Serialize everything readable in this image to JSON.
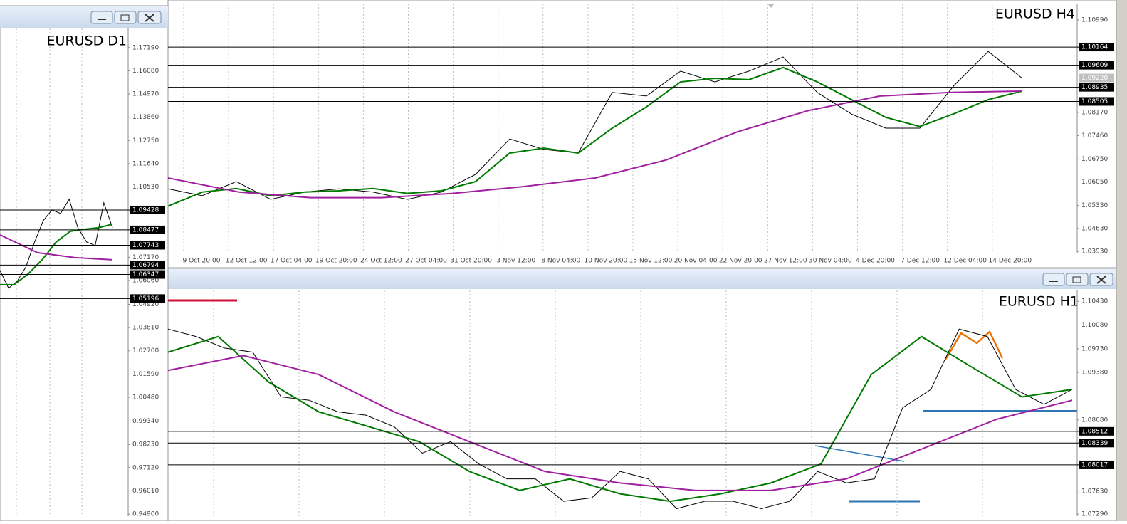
{
  "chart_data": [
    {
      "type": "line",
      "title": "EURUSD D1",
      "ylim": [
        0.948,
        1.181
      ],
      "yticks": [
        {
          "value": 1.1719,
          "label": "1.17190"
        },
        {
          "value": 1.1608,
          "label": "1.16080"
        },
        {
          "value": 1.1497,
          "label": "1.14970"
        },
        {
          "value": 1.1386,
          "label": "1.13860"
        },
        {
          "value": 1.1275,
          "label": "1.12750"
        },
        {
          "value": 1.1164,
          "label": "1.11640"
        },
        {
          "value": 1.1053,
          "label": "1.10530"
        },
        {
          "value": 1.0717,
          "label": "1.07170"
        },
        {
          "value": 1.0606,
          "label": "1.06060"
        },
        {
          "value": 1.0492,
          "label": "1.04920"
        },
        {
          "value": 1.0381,
          "label": "1.03810"
        },
        {
          "value": 1.027,
          "label": "1.02700"
        },
        {
          "value": 1.0159,
          "label": "1.01590"
        },
        {
          "value": 1.0048,
          "label": "1.00480"
        },
        {
          "value": 0.9934,
          "label": "0.99340"
        },
        {
          "value": 0.9823,
          "label": "0.98230"
        },
        {
          "value": 0.9712,
          "label": "0.97120"
        },
        {
          "value": 0.9601,
          "label": "0.96010"
        },
        {
          "value": 0.949,
          "label": "0.94900"
        }
      ],
      "levels": [
        1.09428,
        1.08477,
        1.07743,
        1.06794,
        1.06347,
        1.05196
      ],
      "series": [
        {
          "color": "#000000",
          "values": [
            1.0654,
            1.0569,
            1.0603,
            1.0671,
            1.079,
            1.0892,
            1.0943,
            1.0926,
            1.0994,
            1.0858,
            1.079,
            1.0773,
            1.0977,
            1.0858
          ]
        },
        {
          "color": "#007a00",
          "values": [
            1.0586,
            1.0586,
            1.0637,
            1.0705,
            1.079,
            1.0841,
            1.0851,
            1.0858,
            1.0875
          ]
        },
        {
          "color": "#a020a0",
          "values": [
            1.0824,
            1.0739,
            1.0715,
            1.0705
          ]
        }
      ]
    },
    {
      "type": "line",
      "title": "EURUSD H4",
      "ylim": [
        1.0389,
        1.1149
      ],
      "yticks": [
        {
          "value": 1.1099,
          "label": "1.10990"
        },
        {
          "value": 1.0817,
          "label": "1.08170"
        },
        {
          "value": 1.0746,
          "label": "1.07460"
        },
        {
          "value": 1.0675,
          "label": "1.06750"
        },
        {
          "value": 1.0605,
          "label": "1.06050"
        },
        {
          "value": 1.0533,
          "label": "1.05330"
        },
        {
          "value": 1.0463,
          "label": "1.04630"
        },
        {
          "value": 1.0393,
          "label": "1.03930"
        }
      ],
      "levels": [
        1.10164,
        1.09609,
        1.08935,
        1.08505
      ],
      "current": {
        "value": 1.0922,
        "label": "1.09220"
      },
      "xtick_labels": [
        "9 Oct 20:00",
        "12 Oct 12:00",
        "17 Oct 04:00",
        "19 Oct 20:00",
        "24 Oct 12:00",
        "27 Oct 04:00",
        "31 Oct 20:00",
        "3 Nov 12:00",
        "8 Nov 04:00",
        "10 Nov 20:00",
        "15 Nov 12:00",
        "20 Nov 04:00",
        "22 Nov 20:00",
        "27 Nov 12:00",
        "30 Nov 04:00",
        "4 Dec 20:00",
        "7 Dec 12:00",
        "12 Dec 04:00",
        "14 Dec 20:00"
      ],
      "series": [
        {
          "color": "#000000",
          "values": [
            1.0584,
            1.0563,
            1.0606,
            1.0552,
            1.0574,
            1.0584,
            1.0574,
            1.0552,
            1.0574,
            1.0628,
            1.0736,
            1.0704,
            1.0693,
            1.0878,
            1.0867,
            1.0943,
            1.091,
            1.0943,
            1.0986,
            1.0878,
            1.0812,
            1.0769,
            1.0769,
            1.0899,
            1.1003,
            1.0921
          ]
        },
        {
          "color": "#007a00",
          "values": [
            1.0531,
            1.0574,
            1.0585,
            1.0563,
            1.0574,
            1.0578,
            1.0585,
            1.057,
            1.0578,
            1.0606,
            1.0693,
            1.0708,
            1.0693,
            1.0769,
            1.0834,
            1.091,
            1.0921,
            1.0917,
            1.0954,
            1.091,
            1.0856,
            1.0802,
            1.0774,
            1.0813,
            1.0856,
            1.0882
          ]
        },
        {
          "color": "#a020a0",
          "values": [
            1.0617,
            1.0574,
            1.0557,
            1.0557,
            1.057,
            1.0591,
            1.0617,
            1.0672,
            1.0758,
            1.0823,
            1.0867,
            1.0878,
            1.0882
          ]
        }
      ]
    },
    {
      "type": "line",
      "title": "EURUSD H1",
      "ylim": [
        1.0726,
        1.1059
      ],
      "yticks": [
        {
          "value": 1.1043,
          "label": "1.10430"
        },
        {
          "value": 1.1008,
          "label": "1.10080"
        },
        {
          "value": 1.0973,
          "label": "1.09730"
        },
        {
          "value": 1.0938,
          "label": "1.09380"
        },
        {
          "value": 1.0868,
          "label": "1.08680"
        },
        {
          "value": 1.0763,
          "label": "1.07630"
        },
        {
          "value": 1.0729,
          "label": "1.07290"
        }
      ],
      "levels": [
        1.08512,
        1.08339,
        1.08017
      ],
      "series": [
        {
          "color": "#000000",
          "values": [
            1.1002,
            1.0991,
            1.0974,
            1.0968,
            1.0902,
            1.0897,
            1.088,
            1.0875,
            1.0858,
            1.0819,
            1.0836,
            1.0803,
            1.0781,
            1.0781,
            1.0748,
            1.0753,
            1.0792,
            1.0781,
            1.0737,
            1.0748,
            1.0748,
            1.0737,
            1.0748,
            1.0792,
            1.0775,
            1.0781,
            1.0886,
            1.0913,
            1.1002,
            1.0991,
            1.0913,
            1.0891,
            1.0913
          ]
        },
        {
          "color": "#007a00",
          "values": [
            1.0968,
            1.0991,
            1.0924,
            1.088,
            1.0858,
            1.0836,
            1.0792,
            1.0764,
            1.0781,
            1.0759,
            1.0748,
            1.0759,
            1.0775,
            1.0803,
            1.0935,
            1.0991,
            1.0946,
            1.0902,
            1.0913
          ]
        },
        {
          "color": "#a020a0",
          "values": [
            1.0941,
            1.0963,
            1.0935,
            1.088,
            1.0836,
            1.0792,
            1.0775,
            1.0764,
            1.0764,
            1.0781,
            1.0825,
            1.0869,
            1.0897
          ]
        }
      ]
    }
  ]
}
